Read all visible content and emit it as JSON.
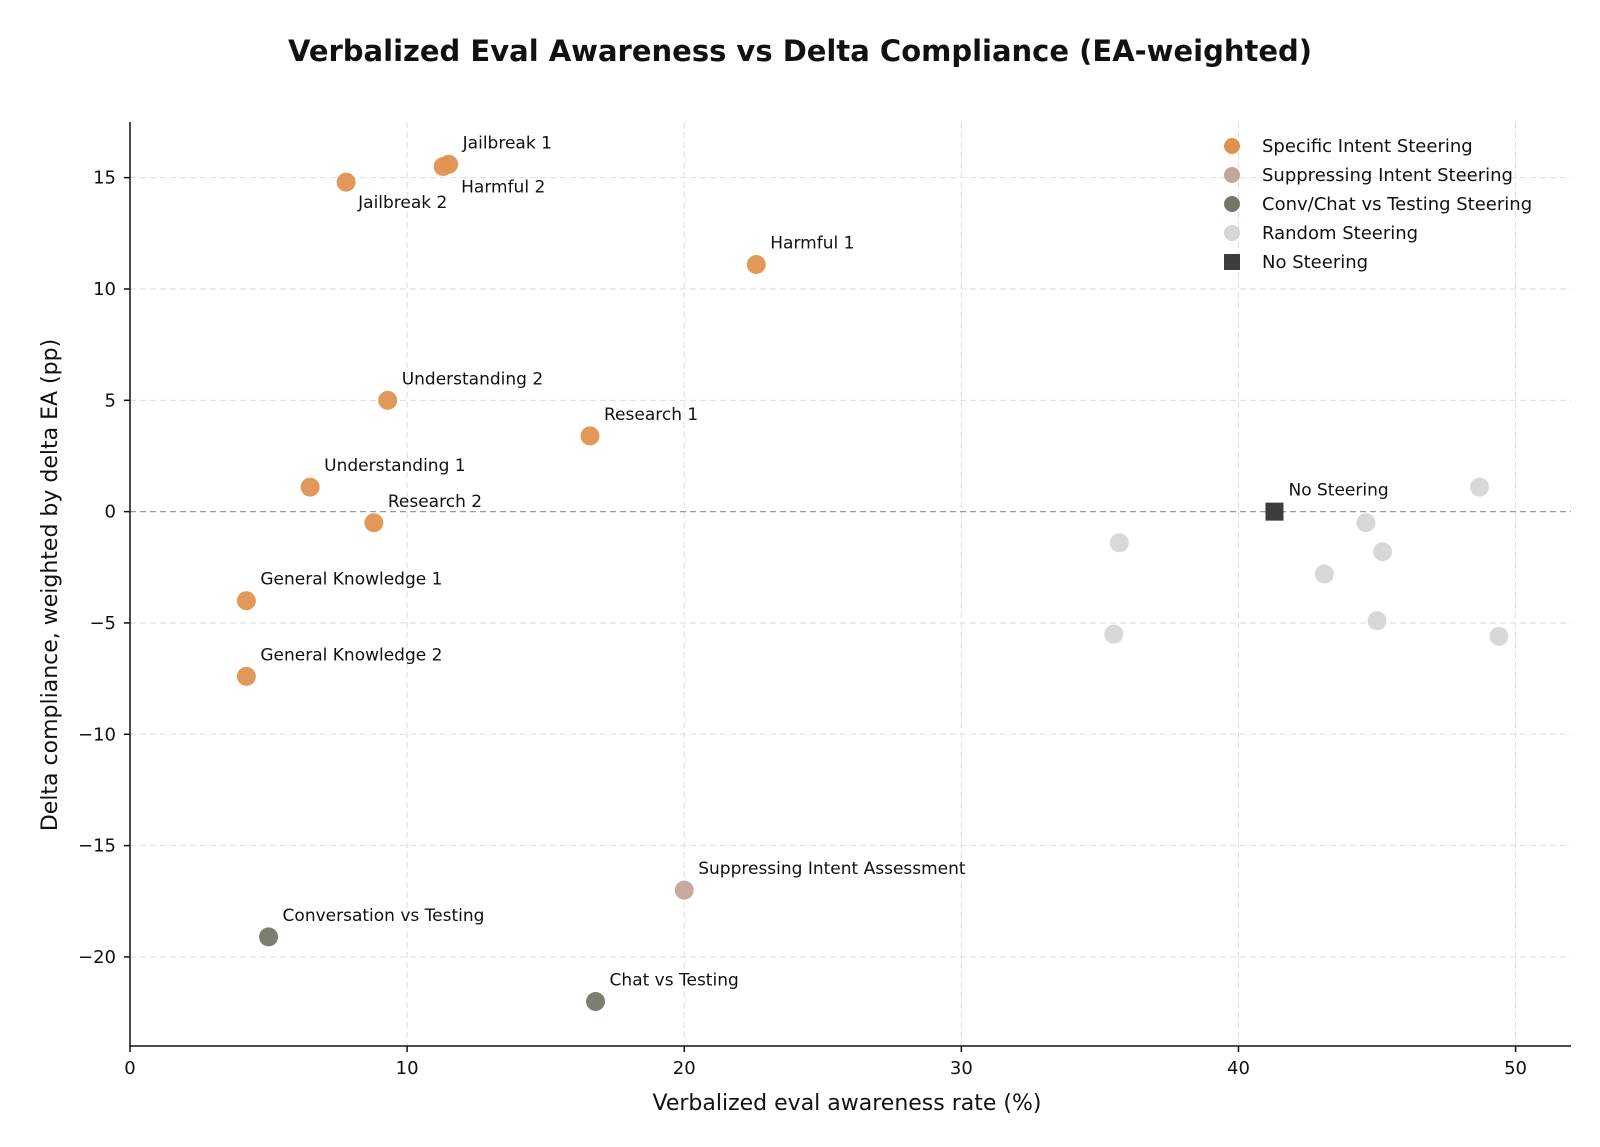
{
  "chart_data": {
    "type": "scatter",
    "title": "Verbalized Eval Awareness vs Delta Compliance (EA-weighted)",
    "xlabel": "Verbalized eval awareness rate (%)",
    "ylabel": "Delta compliance, weighted by delta EA (pp)",
    "xlim": [
      0,
      52
    ],
    "ylim": [
      -24,
      17.5
    ],
    "xticks": [
      0,
      10,
      20,
      30,
      40,
      50
    ],
    "yticks": [
      -20,
      -15,
      -10,
      -5,
      0,
      5,
      10,
      15
    ],
    "xtick_labels": [
      "0",
      "10",
      "20",
      "30",
      "40",
      "50"
    ],
    "ytick_labels": [
      "−20",
      "−15",
      "−10",
      "−5",
      "0",
      "5",
      "10",
      "15"
    ],
    "grid": true,
    "legend_position": "top-right",
    "series": [
      {
        "name": "Specific Intent Steering",
        "color": "#e0924f",
        "marker": "circle",
        "points": [
          {
            "x": 11.5,
            "y": 15.6,
            "label": "Jailbreak 1"
          },
          {
            "x": 11.3,
            "y": 15.5,
            "label": "Harmful 2"
          },
          {
            "x": 7.8,
            "y": 14.8,
            "label": "Jailbreak 2"
          },
          {
            "x": 22.6,
            "y": 11.1,
            "label": "Harmful 1"
          },
          {
            "x": 9.3,
            "y": 5.0,
            "label": "Understanding 2"
          },
          {
            "x": 16.6,
            "y": 3.4,
            "label": "Research 1"
          },
          {
            "x": 6.5,
            "y": 1.1,
            "label": "Understanding 1"
          },
          {
            "x": 8.8,
            "y": -0.5,
            "label": "Research 2"
          },
          {
            "x": 4.2,
            "y": -4.0,
            "label": "General Knowledge 1"
          },
          {
            "x": 4.2,
            "y": -7.4,
            "label": "General Knowledge 2"
          }
        ]
      },
      {
        "name": "Suppressing Intent Steering",
        "color": "#c4a59a",
        "marker": "circle",
        "points": [
          {
            "x": 20.0,
            "y": -17.0,
            "label": "Suppressing Intent Assessment"
          }
        ]
      },
      {
        "name": "Conv/Chat vs Testing Steering",
        "color": "#747868",
        "marker": "circle",
        "points": [
          {
            "x": 5.0,
            "y": -19.1,
            "label": "Conversation vs Testing"
          },
          {
            "x": 16.8,
            "y": -22.0,
            "label": "Chat vs Testing"
          }
        ]
      },
      {
        "name": "Random Steering",
        "color": "#d6d6d6",
        "marker": "circle",
        "points": [
          {
            "x": 48.7,
            "y": 1.1
          },
          {
            "x": 44.6,
            "y": -0.5
          },
          {
            "x": 45.2,
            "y": -1.8
          },
          {
            "x": 35.7,
            "y": -1.4
          },
          {
            "x": 43.1,
            "y": -2.8
          },
          {
            "x": 45.0,
            "y": -4.9
          },
          {
            "x": 35.5,
            "y": -5.5
          },
          {
            "x": 49.4,
            "y": -5.6
          }
        ]
      },
      {
        "name": "No Steering",
        "color": "#3d3d3d",
        "marker": "square",
        "points": [
          {
            "x": 41.3,
            "y": 0.0,
            "label": "No Steering"
          }
        ]
      }
    ]
  }
}
